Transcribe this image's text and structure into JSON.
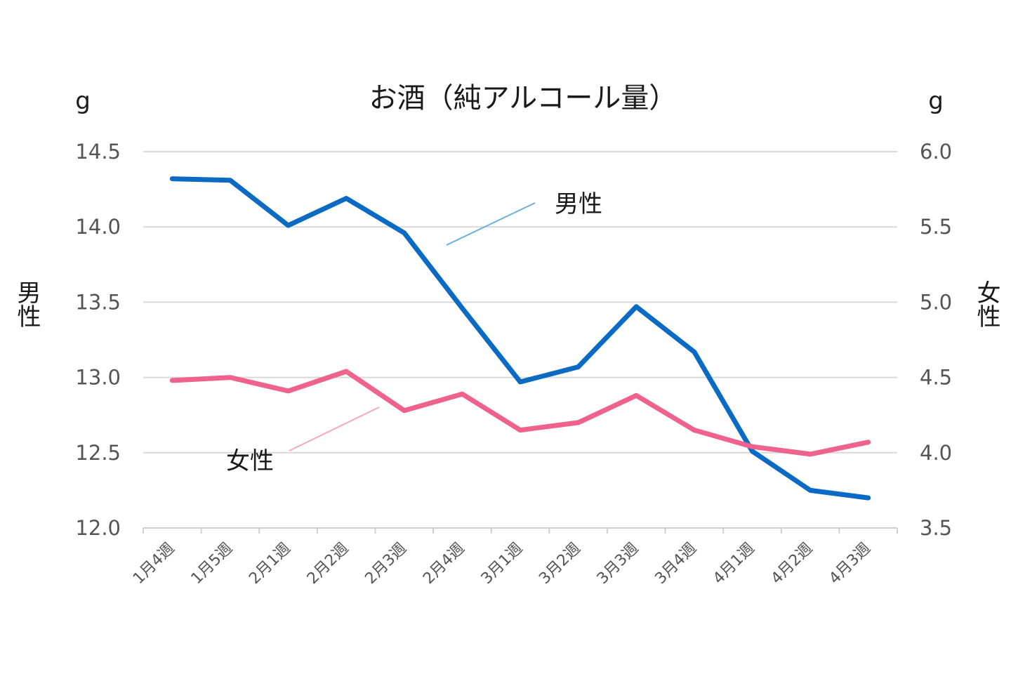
{
  "chart_data": {
    "type": "line",
    "title": "お酒（純アルコール量）",
    "categories": [
      "1月4週",
      "1月5週",
      "2月1週",
      "2月2週",
      "2月3週",
      "2月4週",
      "3月1週",
      "3月2週",
      "3月3週",
      "3月4週",
      "4月1週",
      "4月2週",
      "4月3週"
    ],
    "y_left": {
      "label": "男性",
      "unit": "g",
      "range": [
        12.0,
        14.5
      ],
      "ticks": [
        "14.5",
        "14.0",
        "13.5",
        "13.0",
        "12.5",
        "12.0"
      ]
    },
    "y_right": {
      "label": "女性",
      "unit": "g",
      "range": [
        3.5,
        6.0
      ],
      "ticks": [
        "6.0",
        "5.5",
        "5.0",
        "4.5",
        "4.0",
        "3.5"
      ]
    },
    "grid": true,
    "series": [
      {
        "name": "男性",
        "axis": "left",
        "color": "#0a6ac4",
        "leader_color": "#6aaee0",
        "values": [
          14.32,
          14.31,
          14.01,
          14.19,
          13.96,
          13.46,
          12.97,
          13.07,
          13.47,
          13.17,
          12.51,
          12.25,
          12.2
        ]
      },
      {
        "name": "女性",
        "axis": "right",
        "color": "#f0628e",
        "leader_color": "#f7a8c0",
        "values": [
          4.48,
          4.5,
          4.41,
          4.54,
          4.28,
          4.39,
          4.15,
          4.2,
          4.38,
          4.15,
          4.04,
          3.99,
          4.07
        ]
      }
    ]
  }
}
